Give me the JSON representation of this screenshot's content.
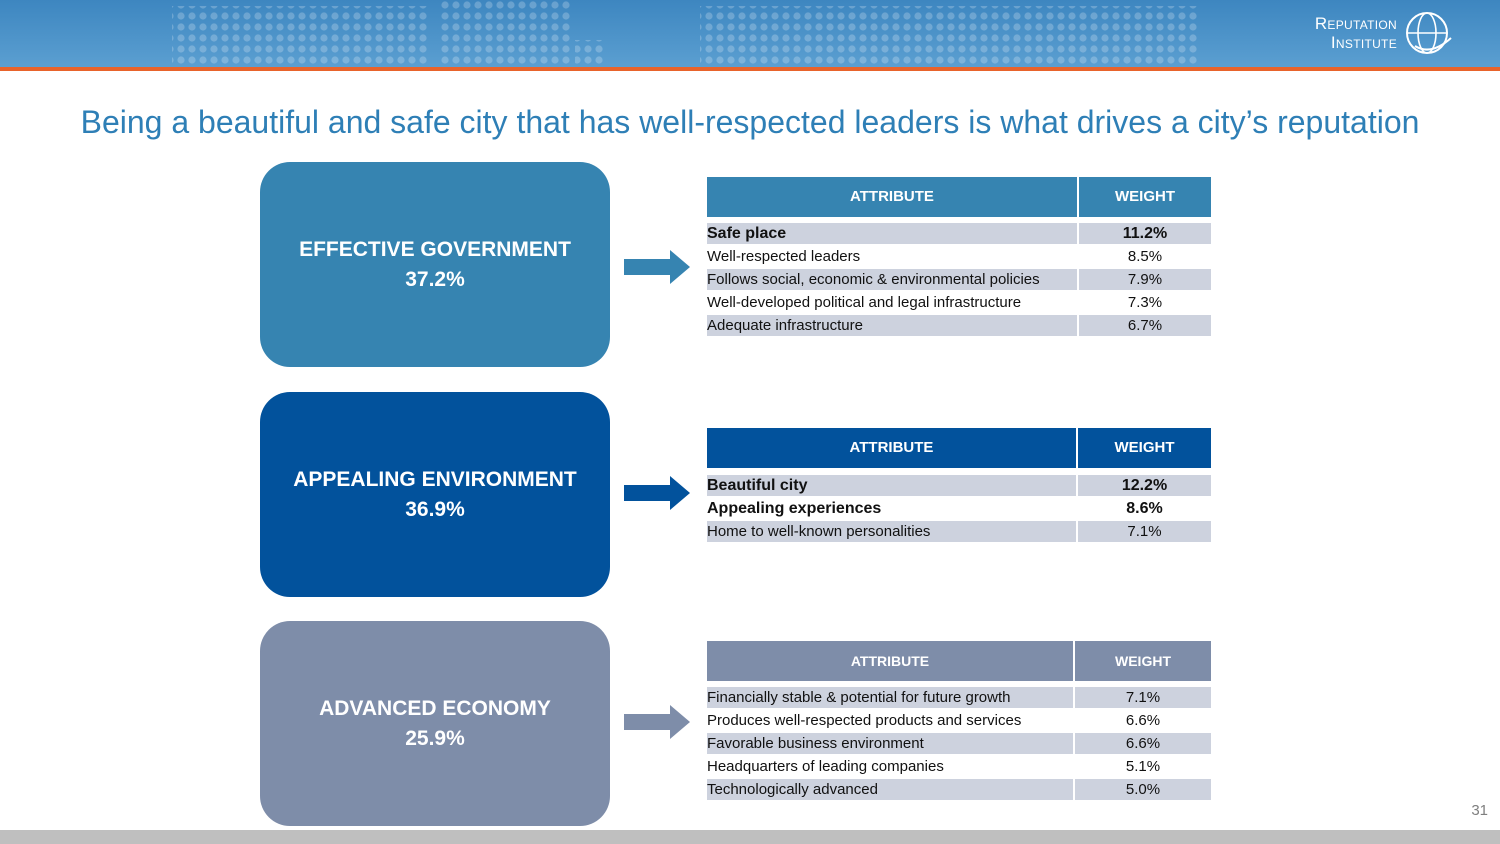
{
  "header": {
    "logo_line1": "Reputation",
    "logo_line2": "Institute",
    "colors": {
      "band": "#4a92c9",
      "rule": "#e8632b"
    }
  },
  "title": "Being a beautiful and safe city that has well-respected leaders is what drives a city’s reputation",
  "drivers": [
    {
      "name": "EFFECTIVE GOVERNMENT",
      "weight": "37.2%",
      "color": "#3684b1",
      "table": {
        "header_attribute": "ATTRIBUTE",
        "header_weight": "WEIGHT",
        "rows": [
          {
            "attribute": "Safe place",
            "weight": "11.2%"
          },
          {
            "attribute": "Well-respected leaders",
            "weight": "8.5%"
          },
          {
            "attribute": "Follows social, economic & environmental policies",
            "weight": "7.9%"
          },
          {
            "attribute": "Well-developed political and legal infrastructure",
            "weight": "7.3%"
          },
          {
            "attribute": "Adequate infrastructure",
            "weight": "6.7%"
          }
        ]
      }
    },
    {
      "name": "APPEALING ENVIRONMENT",
      "weight": "36.9%",
      "color": "#02529c",
      "table": {
        "header_attribute": "ATTRIBUTE",
        "header_weight": "WEIGHT",
        "rows": [
          {
            "attribute": "Beautiful city",
            "weight": "12.2%"
          },
          {
            "attribute": "Appealing experiences",
            "weight": "8.6%"
          },
          {
            "attribute": "Home to well-known personalities",
            "weight": "7.1%"
          }
        ]
      }
    },
    {
      "name": "ADVANCED ECONOMY",
      "weight": "25.9%",
      "color": "#7e8da9",
      "table": {
        "header_attribute": "ATTRIBUTE",
        "header_weight": "WEIGHT",
        "rows": [
          {
            "attribute": "Financially stable & potential for future growth",
            "weight": "7.1%"
          },
          {
            "attribute": "Produces well-respected products and services",
            "weight": "6.6%"
          },
          {
            "attribute": "Favorable business environment",
            "weight": "6.6%"
          },
          {
            "attribute": "Headquarters of leading companies",
            "weight": "5.1%"
          },
          {
            "attribute": "Technologically advanced",
            "weight": "5.0%"
          }
        ]
      }
    }
  ],
  "page_number": "31"
}
